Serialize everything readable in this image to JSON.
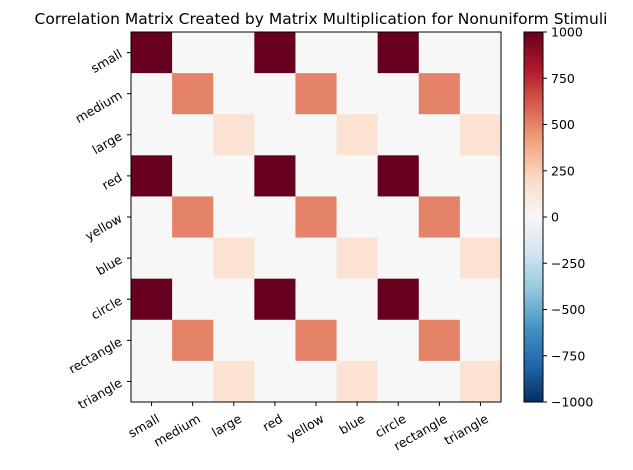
{
  "chart_data": {
    "type": "heatmap",
    "title": "Correlation Matrix Created by Matrix Multiplication for Nonuniform Stimuli",
    "x_labels": [
      "small",
      "medium",
      "large",
      "red",
      "yellow",
      "blue",
      "circle",
      "rectangle",
      "triangle"
    ],
    "y_labels": [
      "small",
      "medium",
      "large",
      "red",
      "yellow",
      "blue",
      "circle",
      "rectangle",
      "triangle"
    ],
    "values": [
      [
        1000,
        0,
        0,
        1000,
        0,
        0,
        1000,
        0,
        0
      ],
      [
        0,
        500,
        0,
        0,
        500,
        0,
        0,
        500,
        0
      ],
      [
        0,
        0,
        150,
        0,
        0,
        150,
        0,
        0,
        150
      ],
      [
        1000,
        0,
        0,
        1000,
        0,
        0,
        1000,
        0,
        0
      ],
      [
        0,
        500,
        0,
        0,
        500,
        0,
        0,
        500,
        0
      ],
      [
        0,
        0,
        150,
        0,
        0,
        150,
        0,
        0,
        150
      ],
      [
        1000,
        0,
        0,
        1000,
        0,
        0,
        1000,
        0,
        0
      ],
      [
        0,
        500,
        0,
        0,
        500,
        0,
        0,
        500,
        0
      ],
      [
        0,
        0,
        150,
        0,
        0,
        150,
        0,
        0,
        150
      ]
    ],
    "colormap": "RdBu_r",
    "vmin": -1000,
    "vmax": 1000,
    "colorbar_ticks": [
      1000,
      750,
      500,
      250,
      0,
      -250,
      -500,
      -750,
      -1000
    ],
    "colorbar_tick_labels": [
      "1000",
      "750",
      "500",
      "250",
      "0",
      "−250",
      "−500",
      "−750",
      "−1000"
    ],
    "tick_label_rotation_deg": 30
  }
}
